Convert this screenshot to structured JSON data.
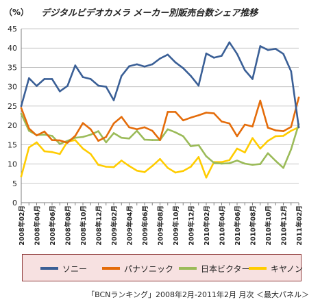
{
  "header": {
    "unit": "（%）",
    "title": "デジタルビデオカメラ メーカー別販売台数シェア推移"
  },
  "source_note": "「BCNランキング」2008年2月-2011年2月 月次 ＜最大パネル＞",
  "chart_data": {
    "type": "line",
    "title": "デジタルビデオカメラ メーカー別販売台数シェア推移",
    "ylabel": "（%）",
    "ylim": [
      0,
      45
    ],
    "yticks": [
      0,
      5,
      10,
      15,
      20,
      25,
      30,
      35,
      40,
      45
    ],
    "grid": true,
    "legend_position": "bottom",
    "x_tick_labels": [
      "2008年02月",
      "2008年04月",
      "2008年06月",
      "2008年08月",
      "2008年10月",
      "2008年12月",
      "2009年02月",
      "2009年04月",
      "2009年06月",
      "2009年08月",
      "2009年10月",
      "2009年12月",
      "2010年02月",
      "2010年04月",
      "2010年06月",
      "2010年08月",
      "2010年10月",
      "2010年12月",
      "2011年02月"
    ],
    "x": [
      "2008-02",
      "2008-03",
      "2008-04",
      "2008-05",
      "2008-06",
      "2008-07",
      "2008-08",
      "2008-09",
      "2008-10",
      "2008-11",
      "2008-12",
      "2009-01",
      "2009-02",
      "2009-03",
      "2009-04",
      "2009-05",
      "2009-06",
      "2009-07",
      "2009-08",
      "2009-09",
      "2009-10",
      "2009-11",
      "2009-12",
      "2010-01",
      "2010-02",
      "2010-03",
      "2010-04",
      "2010-05",
      "2010-06",
      "2010-07",
      "2010-08",
      "2010-09",
      "2010-10",
      "2010-11",
      "2010-12",
      "2011-01",
      "2011-02"
    ],
    "series": [
      {
        "name": "ソニー",
        "color": "#3a5f96",
        "values": [
          25.0,
          32.2,
          30.2,
          32.0,
          32.0,
          28.8,
          30.2,
          35.5,
          32.5,
          32.0,
          30.3,
          30.0,
          26.5,
          32.8,
          35.3,
          35.8,
          35.2,
          35.8,
          37.3,
          38.3,
          36.3,
          34.8,
          32.8,
          30.3,
          38.6,
          37.5,
          38.0,
          41.5,
          38.5,
          34.3,
          32.0,
          40.5,
          39.5,
          39.8,
          38.5,
          34.0,
          19.5
        ]
      },
      {
        "name": "パナソニック",
        "color": "#e46c0a",
        "values": [
          24.5,
          19.2,
          17.4,
          18.4,
          16.2,
          16.1,
          15.5,
          17.3,
          20.6,
          19.0,
          16.0,
          17.0,
          20.5,
          22.2,
          19.5,
          19.0,
          19.5,
          18.6,
          16.2,
          23.5,
          23.5,
          21.3,
          22.0,
          22.6,
          23.3,
          23.1,
          21.0,
          20.5,
          17.2,
          20.2,
          19.7,
          26.4,
          19.4,
          18.7,
          18.5,
          19.6,
          27.2
        ]
      },
      {
        "name": "日本ビクター",
        "color": "#9bbb59",
        "values": [
          23.0,
          18.6,
          17.5,
          17.6,
          17.3,
          15.2,
          16.0,
          16.8,
          17.0,
          17.6,
          18.5,
          15.6,
          18.0,
          16.8,
          16.6,
          18.6,
          16.3,
          16.2,
          16.2,
          19.0,
          18.2,
          17.2,
          14.6,
          14.9,
          12.0,
          10.3,
          10.1,
          10.2,
          10.9,
          10.1,
          9.8,
          10.0,
          12.8,
          10.8,
          9.0,
          13.8,
          20.3
        ]
      },
      {
        "name": "キヤノン",
        "color": "#ffcc00",
        "values": [
          6.8,
          14.3,
          15.6,
          13.3,
          13.1,
          12.6,
          15.8,
          16.2,
          14.0,
          12.6,
          9.8,
          9.3,
          9.2,
          10.9,
          9.5,
          8.3,
          7.9,
          9.5,
          11.3,
          9.0,
          7.8,
          8.2,
          9.3,
          11.8,
          6.5,
          10.5,
          10.5,
          11.0,
          14.0,
          13.0,
          16.7,
          14.0,
          16.0,
          17.2,
          17.3,
          18.6,
          19.5
        ]
      }
    ]
  }
}
